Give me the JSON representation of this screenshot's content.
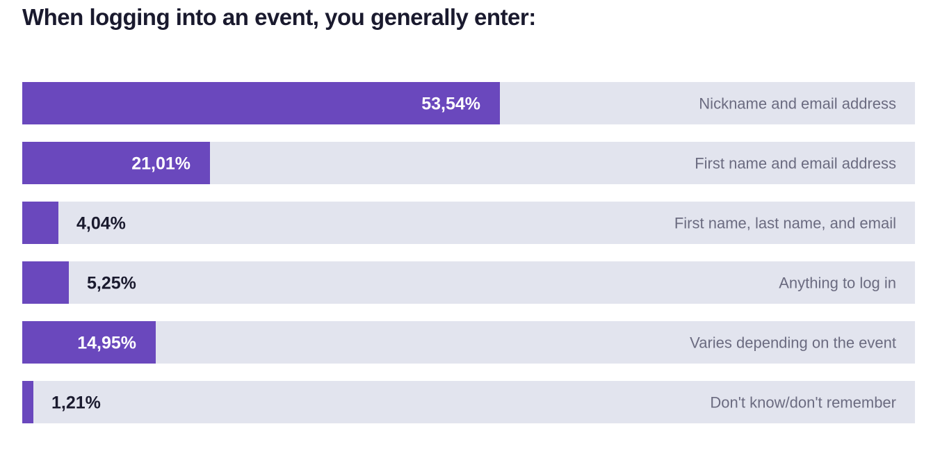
{
  "chart_data": {
    "type": "bar",
    "orientation": "horizontal",
    "title": "When logging into an event, you generally enter:",
    "categories": [
      "Nickname and email address",
      "First name and email address",
      "First name, last name, and email",
      "Anything to log in",
      "Varies depending on the event",
      "Don't know/don't remember"
    ],
    "values": [
      53.54,
      21.01,
      4.04,
      5.25,
      14.95,
      1.21
    ],
    "value_labels": [
      "53,54%",
      "21,01%",
      "4,04%",
      "5,25%",
      "14,95%",
      "1,21%"
    ],
    "xlim": [
      0,
      100
    ],
    "unit": "%",
    "grid": false,
    "legend": "none",
    "colors": {
      "bar": "#6a48bd",
      "track": "#e2e4ee",
      "value_on_bar": "#ffffff",
      "value_outside": "#1a1a2e",
      "category_label": "#6b6b80",
      "title": "#1a1a2e"
    }
  }
}
